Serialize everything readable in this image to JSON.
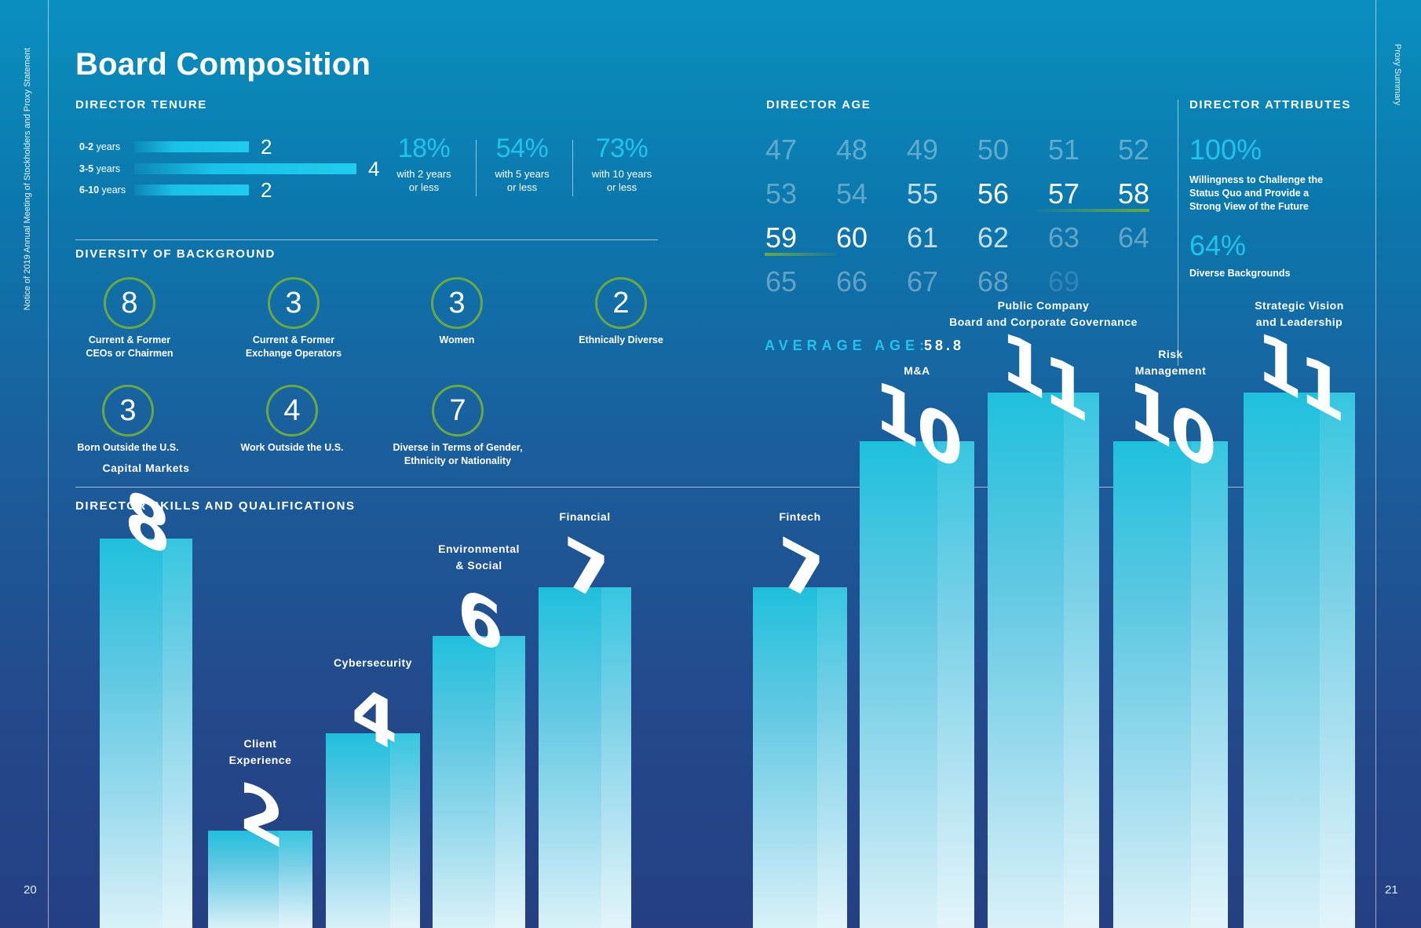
{
  "side_left": "Notice of 2019 Annual Meeting of Stockholders and Proxy Statement",
  "side_right": "Proxy Summary",
  "page_left": "20",
  "page_right": "21",
  "title": "Board Composition",
  "tenure": {
    "title": "DIRECTOR TENURE",
    "rows": [
      {
        "range": "0-2",
        "unit": "years",
        "value": 2
      },
      {
        "range": "3-5",
        "unit": "years",
        "value": 4
      },
      {
        "range": "6-10",
        "unit": "years",
        "value": 2
      }
    ],
    "stats": [
      {
        "pct": "18%",
        "line1": "with 2 years",
        "line2": "or less"
      },
      {
        "pct": "54%",
        "line1": "with 5 years",
        "line2": "or less"
      },
      {
        "pct": "73%",
        "line1": "with 10 years",
        "line2": "or less"
      }
    ]
  },
  "diversity": {
    "title": "DIVERSITY OF BACKGROUND",
    "items": [
      {
        "value": "8",
        "line1": "Current & Former",
        "line2": "CEOs or Chairmen"
      },
      {
        "value": "3",
        "line1": "Current & Former",
        "line2": "Exchange Operators"
      },
      {
        "value": "3",
        "line1": "Women",
        "line2": ""
      },
      {
        "value": "2",
        "line1": "Ethnically Diverse",
        "line2": ""
      },
      {
        "value": "3",
        "line1": "Born Outside the U.S.",
        "line2": ""
      },
      {
        "value": "4",
        "line1": "Work Outside the U.S.",
        "line2": ""
      },
      {
        "value": "7",
        "line1": "Diverse in Terms of Gender,",
        "line2": "Ethnicity or Nationality"
      }
    ]
  },
  "age": {
    "title": "DIRECTOR AGE",
    "highlight_color": "#6aa93f",
    "values": [
      {
        "n": "47",
        "tone": "dim"
      },
      {
        "n": "48",
        "tone": "dim"
      },
      {
        "n": "49",
        "tone": "dim"
      },
      {
        "n": "50",
        "tone": "dim"
      },
      {
        "n": "51",
        "tone": "dim"
      },
      {
        "n": "52",
        "tone": "dim"
      },
      {
        "n": "53",
        "tone": "dim"
      },
      {
        "n": "54",
        "tone": "dim"
      },
      {
        "n": "55",
        "tone": "mid"
      },
      {
        "n": "56",
        "tone": "hi"
      },
      {
        "n": "57",
        "tone": "hi"
      },
      {
        "n": "58",
        "tone": "hi"
      },
      {
        "n": "59",
        "tone": "hi"
      },
      {
        "n": "60",
        "tone": "hi"
      },
      {
        "n": "61",
        "tone": "mid"
      },
      {
        "n": "62",
        "tone": "mid"
      },
      {
        "n": "63",
        "tone": "dim"
      },
      {
        "n": "64",
        "tone": "dim"
      },
      {
        "n": "65",
        "tone": "dim"
      },
      {
        "n": "66",
        "tone": "dim"
      },
      {
        "n": "67",
        "tone": "dim"
      },
      {
        "n": "68",
        "tone": "dim"
      },
      {
        "n": "69",
        "tone": "faint"
      }
    ],
    "average_label": "AVERAGE AGE:",
    "average_value": "58.8"
  },
  "attributes": {
    "title": "DIRECTOR ATTRIBUTES",
    "items": [
      {
        "pct": "100%",
        "lines": [
          "Willingness to Challenge the",
          "Status Quo and Provide a",
          "Strong View of the Future"
        ]
      },
      {
        "pct": "64%",
        "lines": [
          "Diverse Backgrounds"
        ]
      }
    ]
  },
  "skills": {
    "title": "DIRECTOR SKILLS AND QUALIFICATIONS",
    "accent": "#1ec4ee"
  },
  "chart_data": {
    "type": "bar",
    "title": "DIRECTOR SKILLS AND QUALIFICATIONS",
    "categories": [
      "Capital Markets",
      "Client Experience",
      "Cybersecurity",
      "Environmental & Social",
      "Financial",
      "Fintech",
      "M&A",
      "Public Company Board and Corporate Governance",
      "Risk Management",
      "Strategic Vision and Leadership"
    ],
    "label_lines": [
      [
        "Capital Markets"
      ],
      [
        "Client",
        "Experience"
      ],
      [
        "Cybersecurity"
      ],
      [
        "Environmental",
        "& Social"
      ],
      [
        "Financial"
      ],
      [
        "Fintech"
      ],
      [
        "M&A"
      ],
      [
        "Public Company",
        "Board and Corporate Governance"
      ],
      [
        "Risk",
        "Management"
      ],
      [
        "Strategic Vision",
        "and Leadership"
      ]
    ],
    "values": [
      8,
      2,
      4,
      6,
      7,
      7,
      10,
      11,
      10,
      11
    ],
    "ylim": [
      0,
      11
    ]
  }
}
